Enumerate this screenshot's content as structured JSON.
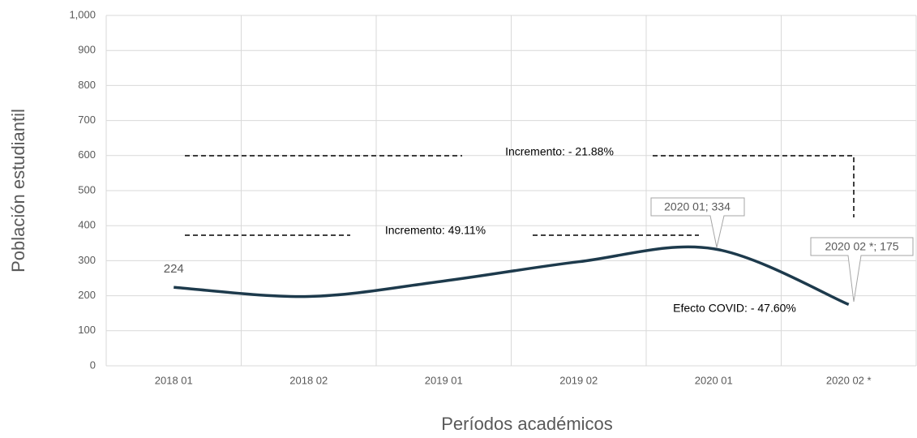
{
  "chart_data": {
    "type": "line",
    "y_label": "Población estudiantil",
    "x_label": "Períodos académicos",
    "categories": [
      "2018 01",
      "2018 02",
      "2019 01",
      "2019 02",
      "2020 01",
      "2020 02 *"
    ],
    "series": [
      {
        "color": "#1d3a4c",
        "values": [
          224,
          198,
          242,
          297,
          334,
          175
        ]
      }
    ],
    "ylim": [
      0,
      1000
    ],
    "yticks": [
      0,
      100,
      200,
      300,
      400,
      500,
      600,
      700,
      800,
      900,
      {
        "value": 1000,
        "label": "1,000"
      }
    ],
    "grid": true,
    "smooth": true,
    "annotations": [
      "Incremento: - 21.88%",
      "Incremento: 49.11%",
      "Efecto COVID: - 47.60%",
      "2020 01; 334",
      "2020 02 *; 175"
    ]
  }
}
